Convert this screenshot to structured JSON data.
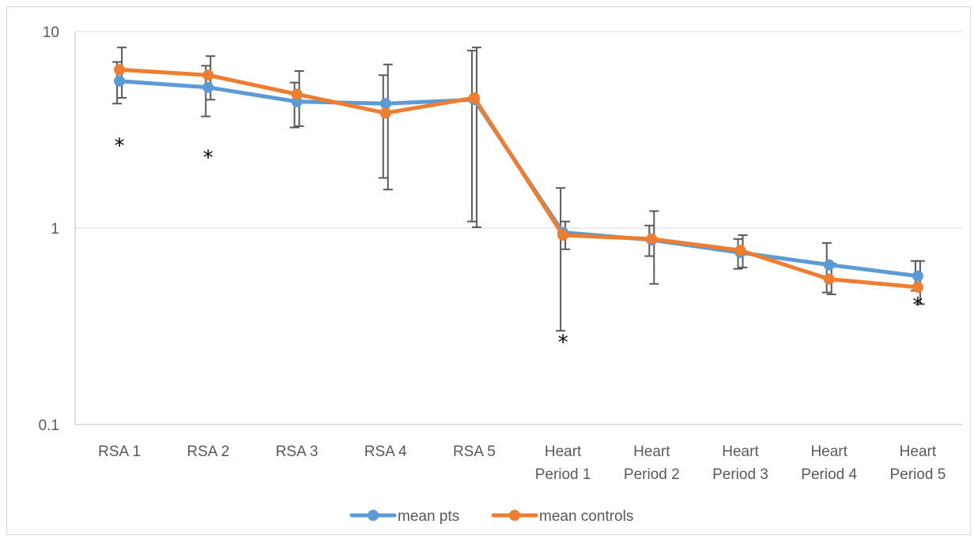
{
  "chart_data": {
    "type": "line",
    "title": "",
    "xlabel": "",
    "ylabel": "",
    "y_scale": "log",
    "ylim": [
      0.1,
      10
    ],
    "y_ticks": [
      "10",
      "1",
      "0.1"
    ],
    "y_tick_values": [
      10,
      1,
      0.1
    ],
    "grid": "horizontal",
    "legend_position": "bottom",
    "categories": [
      [
        "RSA 1"
      ],
      [
        "RSA 2"
      ],
      [
        "RSA 3"
      ],
      [
        "RSA 4"
      ],
      [
        "RSA 5"
      ],
      [
        "Heart",
        "Period 1"
      ],
      [
        "Heart",
        "Period 2"
      ],
      [
        "Heart",
        "Period 3"
      ],
      [
        "Heart",
        "Period 4"
      ],
      [
        "Heart",
        "Period 5"
      ]
    ],
    "series": [
      {
        "name": "mean pts",
        "color": "#5B9BD5",
        "values": [
          5.6,
          5.2,
          4.4,
          4.3,
          4.5,
          0.95,
          0.87,
          0.75,
          0.65,
          0.57
        ],
        "err_high": [
          7.0,
          6.7,
          5.5,
          6.0,
          8.0,
          1.6,
          1.03,
          0.88,
          0.84,
          0.68
        ],
        "err_low": [
          4.3,
          3.7,
          3.25,
          1.8,
          1.08,
          0.3,
          0.72,
          0.62,
          0.47,
          0.48
        ]
      },
      {
        "name": "mean controls",
        "color": "#ED7D31",
        "values": [
          6.4,
          6.0,
          4.8,
          3.85,
          4.6,
          0.92,
          0.88,
          0.77,
          0.55,
          0.5
        ],
        "err_high": [
          8.3,
          7.5,
          6.3,
          6.8,
          8.3,
          1.08,
          1.22,
          0.92,
          0.66,
          0.68
        ],
        "err_low": [
          4.6,
          4.5,
          3.3,
          1.57,
          1.01,
          0.78,
          0.52,
          0.63,
          0.46,
          0.41
        ]
      }
    ],
    "annotations": [
      {
        "category_index": 0,
        "text": "*",
        "value": 2.7
      },
      {
        "category_index": 1,
        "text": "*",
        "value": 2.35
      },
      {
        "category_index": 5,
        "text": "*",
        "value": 0.27
      },
      {
        "category_index": 9,
        "text": "*",
        "value": 0.42
      }
    ]
  }
}
